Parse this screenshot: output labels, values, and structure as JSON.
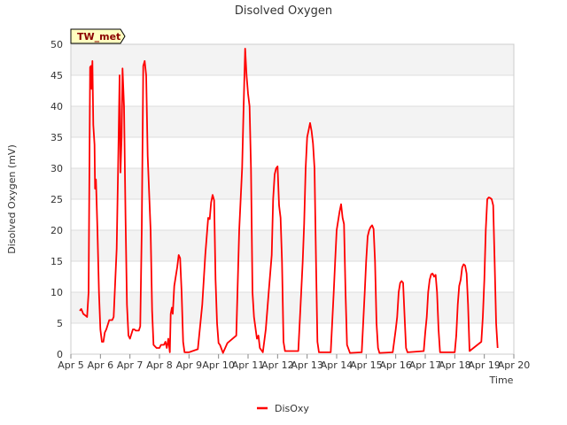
{
  "chart_data": {
    "type": "line",
    "title": "Disolved Oxygen",
    "xlabel": "Time",
    "ylabel": "Disolved Oxygen (mV)",
    "site_tag": "TW_met",
    "ylim": [
      0,
      50
    ],
    "yticks": [
      0,
      5,
      10,
      15,
      20,
      25,
      30,
      35,
      40,
      45,
      50
    ],
    "xlim": [
      5,
      20
    ],
    "xticks": [
      {
        "value": 5,
        "label": "Apr 5"
      },
      {
        "value": 6,
        "label": "Apr 6"
      },
      {
        "value": 7,
        "label": "Apr 7"
      },
      {
        "value": 8,
        "label": "Apr 8"
      },
      {
        "value": 9,
        "label": "Apr 9"
      },
      {
        "value": 10,
        "label": "Apr 10"
      },
      {
        "value": 11,
        "label": "Apr 11"
      },
      {
        "value": 12,
        "label": "Apr 12"
      },
      {
        "value": 13,
        "label": "Apr 13"
      },
      {
        "value": 14,
        "label": "Apr 14"
      },
      {
        "value": 15,
        "label": "Apr 15"
      },
      {
        "value": 16,
        "label": "Apr 16"
      },
      {
        "value": 17,
        "label": "Apr 17"
      },
      {
        "value": 18,
        "label": "Apr 18"
      },
      {
        "value": 19,
        "label": "Apr 19"
      },
      {
        "value": 20,
        "label": "Apr 20"
      }
    ],
    "series": [
      {
        "name": "DisOxy",
        "color": "#ff0000",
        "points": [
          [
            5.3,
            7.0
          ],
          [
            5.35,
            7.3
          ],
          [
            5.42,
            6.5
          ],
          [
            5.5,
            6.2
          ],
          [
            5.55,
            6.0
          ],
          [
            5.6,
            10
          ],
          [
            5.65,
            46.3
          ],
          [
            5.68,
            46.5
          ],
          [
            5.7,
            42.8
          ],
          [
            5.73,
            47.3
          ],
          [
            5.76,
            37.0
          ],
          [
            5.8,
            33.8
          ],
          [
            5.82,
            26.7
          ],
          [
            5.85,
            28.2
          ],
          [
            5.9,
            20
          ],
          [
            5.95,
            10
          ],
          [
            6.0,
            4.0
          ],
          [
            6.05,
            2.0
          ],
          [
            6.1,
            2.0
          ],
          [
            6.15,
            3.5
          ],
          [
            6.2,
            4.0
          ],
          [
            6.3,
            5.5
          ],
          [
            6.4,
            5.5
          ],
          [
            6.45,
            6.0
          ],
          [
            6.55,
            17
          ],
          [
            6.6,
            30
          ],
          [
            6.65,
            45
          ],
          [
            6.68,
            29.3
          ],
          [
            6.72,
            35
          ],
          [
            6.75,
            46.1
          ],
          [
            6.8,
            40
          ],
          [
            6.85,
            22
          ],
          [
            6.9,
            8
          ],
          [
            6.95,
            3.0
          ],
          [
            7.0,
            2.5
          ],
          [
            7.1,
            4.0
          ],
          [
            7.15,
            4.0
          ],
          [
            7.2,
            3.8
          ],
          [
            7.3,
            3.8
          ],
          [
            7.35,
            4.5
          ],
          [
            7.4,
            20
          ],
          [
            7.45,
            46.5
          ],
          [
            7.5,
            47.3
          ],
          [
            7.55,
            45
          ],
          [
            7.6,
            32
          ],
          [
            7.7,
            20
          ],
          [
            7.75,
            7
          ],
          [
            7.8,
            1.5
          ],
          [
            7.9,
            1.0
          ],
          [
            8.0,
            1.0
          ],
          [
            8.05,
            1.5
          ],
          [
            8.15,
            1.5
          ],
          [
            8.2,
            2.0
          ],
          [
            8.25,
            1.0
          ],
          [
            8.3,
            2.5
          ],
          [
            8.35,
            0.3
          ],
          [
            8.38,
            6.5
          ],
          [
            8.42,
            7.5
          ],
          [
            8.45,
            6.5
          ],
          [
            8.5,
            11
          ],
          [
            8.6,
            14
          ],
          [
            8.65,
            16.0
          ],
          [
            8.7,
            15.5
          ],
          [
            8.75,
            10
          ],
          [
            8.8,
            2.0
          ],
          [
            8.85,
            0.3
          ],
          [
            9.0,
            0.3
          ],
          [
            9.3,
            0.8
          ],
          [
            9.45,
            8
          ],
          [
            9.55,
            16
          ],
          [
            9.65,
            22
          ],
          [
            9.7,
            21.8
          ],
          [
            9.75,
            24.5
          ],
          [
            9.8,
            25.7
          ],
          [
            9.85,
            24.8
          ],
          [
            9.9,
            12
          ],
          [
            9.95,
            5
          ],
          [
            10.0,
            1.8
          ],
          [
            10.05,
            1.5
          ],
          [
            10.15,
            0.2
          ],
          [
            10.3,
            1.8
          ],
          [
            10.6,
            3.0
          ],
          [
            10.7,
            20
          ],
          [
            10.8,
            30
          ],
          [
            10.85,
            40
          ],
          [
            10.9,
            49.3
          ],
          [
            10.95,
            45
          ],
          [
            11.0,
            42
          ],
          [
            11.05,
            40
          ],
          [
            11.1,
            30
          ],
          [
            11.15,
            10
          ],
          [
            11.2,
            6
          ],
          [
            11.3,
            2.5
          ],
          [
            11.35,
            3.0
          ],
          [
            11.4,
            1.0
          ],
          [
            11.5,
            0.3
          ],
          [
            11.6,
            4.0
          ],
          [
            11.7,
            10
          ],
          [
            11.8,
            16
          ],
          [
            11.85,
            25
          ],
          [
            11.9,
            29
          ],
          [
            11.95,
            30.0
          ],
          [
            12.0,
            30.3
          ],
          [
            12.05,
            24
          ],
          [
            12.1,
            22
          ],
          [
            12.15,
            15
          ],
          [
            12.2,
            2.0
          ],
          [
            12.25,
            0.5
          ],
          [
            12.7,
            0.5
          ],
          [
            12.8,
            10
          ],
          [
            12.85,
            15
          ],
          [
            12.9,
            21
          ],
          [
            12.95,
            30
          ],
          [
            13.0,
            35
          ],
          [
            13.1,
            37.3
          ],
          [
            13.15,
            36
          ],
          [
            13.2,
            34
          ],
          [
            13.25,
            30
          ],
          [
            13.3,
            15
          ],
          [
            13.35,
            2.0
          ],
          [
            13.4,
            0.3
          ],
          [
            13.8,
            0.3
          ],
          [
            13.9,
            10
          ],
          [
            13.95,
            15
          ],
          [
            14.0,
            20
          ],
          [
            14.1,
            23
          ],
          [
            14.15,
            24.2
          ],
          [
            14.2,
            22
          ],
          [
            14.25,
            21
          ],
          [
            14.3,
            10
          ],
          [
            14.35,
            1.5
          ],
          [
            14.45,
            0.2
          ],
          [
            14.85,
            0.3
          ],
          [
            14.95,
            10
          ],
          [
            15.0,
            15
          ],
          [
            15.05,
            19
          ],
          [
            15.1,
            20
          ],
          [
            15.15,
            20.5
          ],
          [
            15.2,
            20.8
          ],
          [
            15.25,
            20.2
          ],
          [
            15.3,
            15
          ],
          [
            15.35,
            5
          ],
          [
            15.4,
            1.0
          ],
          [
            15.45,
            0.2
          ],
          [
            15.9,
            0.3
          ],
          [
            16.0,
            4.0
          ],
          [
            16.05,
            6.0
          ],
          [
            16.1,
            10
          ],
          [
            16.15,
            11.5
          ],
          [
            16.2,
            11.8
          ],
          [
            16.25,
            11.5
          ],
          [
            16.3,
            6.0
          ],
          [
            16.35,
            1.0
          ],
          [
            16.4,
            0.3
          ],
          [
            16.95,
            0.5
          ],
          [
            17.0,
            3.5
          ],
          [
            17.05,
            6.0
          ],
          [
            17.1,
            10
          ],
          [
            17.15,
            12
          ],
          [
            17.2,
            12.9
          ],
          [
            17.25,
            13.0
          ],
          [
            17.3,
            12.5
          ],
          [
            17.35,
            12.8
          ],
          [
            17.4,
            10
          ],
          [
            17.45,
            4
          ],
          [
            17.5,
            0.3
          ],
          [
            18.0,
            0.3
          ],
          [
            18.05,
            3
          ],
          [
            18.1,
            8
          ],
          [
            18.15,
            11
          ],
          [
            18.2,
            12
          ],
          [
            18.25,
            14.0
          ],
          [
            18.3,
            14.5
          ],
          [
            18.35,
            14.3
          ],
          [
            18.4,
            13
          ],
          [
            18.45,
            8
          ],
          [
            18.5,
            0.5
          ],
          [
            18.9,
            2.0
          ],
          [
            18.95,
            6.0
          ],
          [
            19.0,
            12
          ],
          [
            19.05,
            20
          ],
          [
            19.1,
            25.0
          ],
          [
            19.15,
            25.3
          ],
          [
            19.2,
            25.2
          ],
          [
            19.25,
            25.0
          ],
          [
            19.3,
            24
          ],
          [
            19.35,
            15
          ],
          [
            19.4,
            5
          ],
          [
            19.45,
            1.0
          ]
        ]
      }
    ],
    "legend_position": "bottom-center",
    "grid": true
  }
}
